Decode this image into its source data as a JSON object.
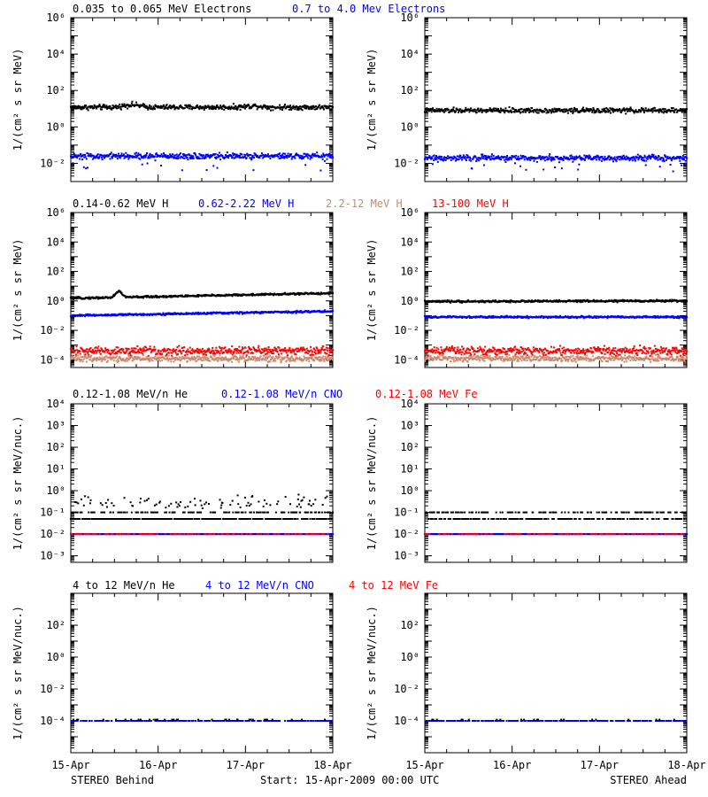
{
  "colors": {
    "black": "#000000",
    "blue": "#0000ff",
    "brown": "#c98a6e",
    "red": "#ff0000"
  },
  "titles": [
    [
      {
        "text": "0.035 to 0.065 MeV Electrons",
        "color": "black"
      },
      {
        "text": "0.7 to 4.0 Mev Electrons",
        "color": "blue"
      }
    ],
    [
      {
        "text": "0.14-0.62 MeV H",
        "color": "black"
      },
      {
        "text": "0.62-2.22 MeV H",
        "color": "blue"
      },
      {
        "text": "2.2-12 MeV H",
        "color": "brown"
      },
      {
        "text": "13-100 MeV H",
        "color": "red"
      }
    ],
    [
      {
        "text": "0.12-1.08 MeV/n He",
        "color": "black"
      },
      {
        "text": "0.12-1.08 MeV/n CNO",
        "color": "blue"
      },
      {
        "text": "0.12-1.08 MeV Fe",
        "color": "red"
      }
    ],
    [
      {
        "text": "4 to 12 MeV/n He",
        "color": "black"
      },
      {
        "text": "4 to 12 MeV/n CNO",
        "color": "blue"
      },
      {
        "text": "4 to 12 MeV Fe",
        "color": "red"
      }
    ]
  ],
  "footer": {
    "left": "STEREO Behind",
    "center": "Start: 15-Apr-2009 00:00 UTC",
    "right": "STEREO Ahead"
  },
  "chart_data": [
    {
      "type": "scatter",
      "panel": "row1-behind",
      "ylabel": "1/(cm² s sr MeV)",
      "yscale": "log",
      "ylim": [
        0.001,
        1000000
      ],
      "ytick_exponents": [
        -2,
        0,
        2,
        4,
        6
      ],
      "x": [
        "15-Apr",
        "16-Apr",
        "17-Apr",
        "18-Apr"
      ],
      "xlim": [
        0,
        3
      ],
      "series": [
        {
          "color": "black",
          "level": 12,
          "spread": 0.1,
          "bumps": [
            [
              0.7,
              0.15
            ],
            [
              2.1,
              0.08
            ]
          ]
        },
        {
          "color": "blue",
          "level": 0.025,
          "spread": 0.12,
          "outliers": 0.1
        }
      ]
    },
    {
      "type": "scatter",
      "panel": "row1-ahead",
      "ylabel": "1/(cm² s sr MeV)",
      "yscale": "log",
      "ylim": [
        0.001,
        1000000
      ],
      "ytick_exponents": [
        -2,
        0,
        2,
        4,
        6
      ],
      "x": [
        "15-Apr",
        "16-Apr",
        "17-Apr",
        "18-Apr"
      ],
      "xlim": [
        0,
        3
      ],
      "series": [
        {
          "color": "black",
          "level": 8,
          "spread": 0.1
        },
        {
          "color": "blue",
          "level": 0.02,
          "spread": 0.12,
          "outliers": 0.1
        }
      ]
    },
    {
      "type": "scatter",
      "panel": "row2-behind",
      "ylabel": "1/(cm² s sr MeV)",
      "yscale": "log",
      "ylim": [
        3e-05,
        1000000
      ],
      "ytick_exponents": [
        -4,
        -2,
        0,
        2,
        4,
        6
      ],
      "x": [
        "15-Apr",
        "16-Apr",
        "17-Apr",
        "18-Apr"
      ],
      "xlim": [
        0,
        3
      ],
      "series": [
        {
          "color": "black",
          "level": 1.5,
          "spread": 0.05,
          "trend": 0.35,
          "peak": [
            0.55,
            0.45
          ]
        },
        {
          "color": "blue",
          "level": 0.1,
          "spread": 0.05,
          "trend": 0.3
        },
        {
          "color": "brown",
          "level": 0.00012,
          "spread": 0.15
        },
        {
          "color": "red",
          "level": 0.0004,
          "spread": 0.2
        }
      ]
    },
    {
      "type": "scatter",
      "panel": "row2-ahead",
      "ylabel": "1/(cm² s sr MeV)",
      "yscale": "log",
      "ylim": [
        3e-05,
        1000000
      ],
      "ytick_exponents": [
        -4,
        -2,
        0,
        2,
        4,
        6
      ],
      "x": [
        "15-Apr",
        "16-Apr",
        "17-Apr",
        "18-Apr"
      ],
      "xlim": [
        0,
        3
      ],
      "series": [
        {
          "color": "black",
          "level": 0.9,
          "spread": 0.05,
          "trend": 0.05
        },
        {
          "color": "blue",
          "level": 0.08,
          "spread": 0.05
        },
        {
          "color": "brown",
          "level": 0.00012,
          "spread": 0.15
        },
        {
          "color": "red",
          "level": 0.0004,
          "spread": 0.2
        }
      ]
    },
    {
      "type": "scatter",
      "panel": "row3-behind",
      "ylabel": "1/(cm² s sr MeV/nuc.)",
      "yscale": "log",
      "ylim": [
        0.0005,
        10000
      ],
      "ytick_exponents": [
        -3,
        -2,
        -1,
        0,
        1,
        2,
        3,
        4
      ],
      "x": [
        "15-Apr",
        "16-Apr",
        "17-Apr",
        "18-Apr"
      ],
      "xlim": [
        0,
        3
      ],
      "series": [
        {
          "color": "black",
          "level": 0.05,
          "quantized": [
            0.05,
            0.1,
            0.15,
            0.2,
            0.3
          ],
          "density": 1.0
        },
        {
          "color": "blue",
          "level": 0.01,
          "density": 1.0
        },
        {
          "color": "red",
          "level": 0.01,
          "density": 0.3
        }
      ]
    },
    {
      "type": "scatter",
      "panel": "row3-ahead",
      "ylabel": "1/(cm² s sr MeV/nuc.)",
      "yscale": "log",
      "ylim": [
        0.0005,
        10000
      ],
      "ytick_exponents": [
        -3,
        -2,
        -1,
        0,
        1,
        2,
        3,
        4
      ],
      "x": [
        "15-Apr",
        "16-Apr",
        "17-Apr",
        "18-Apr"
      ],
      "xlim": [
        0,
        3
      ],
      "series": [
        {
          "color": "black",
          "level": 0.05,
          "quantized": [
            0.05,
            0.1
          ],
          "density": 0.6
        },
        {
          "color": "blue",
          "level": 0.01,
          "density": 1.0
        },
        {
          "color": "red",
          "level": 0.01,
          "density": 0.3
        }
      ]
    },
    {
      "type": "scatter",
      "panel": "row4-behind",
      "ylabel": "1/(cm² s sr MeV/nuc.)",
      "yscale": "log",
      "ylim": [
        1e-06,
        10000
      ],
      "ytick_exponents": [
        -4,
        -2,
        0,
        2
      ],
      "x": [
        "15-Apr",
        "16-Apr",
        "17-Apr",
        "18-Apr"
      ],
      "xlim": [
        0,
        3
      ],
      "series": [
        {
          "color": "blue",
          "level": 0.0001,
          "density": 0.5
        },
        {
          "color": "black",
          "level": 0.00012,
          "density": 0.06
        }
      ]
    },
    {
      "type": "scatter",
      "panel": "row4-ahead",
      "ylabel": "1/(cm² s sr MeV/nuc.)",
      "yscale": "log",
      "ylim": [
        1e-06,
        10000
      ],
      "ytick_exponents": [
        -4,
        -2,
        0,
        2
      ],
      "x": [
        "15-Apr",
        "16-Apr",
        "17-Apr",
        "18-Apr"
      ],
      "xlim": [
        0,
        3
      ],
      "series": [
        {
          "color": "blue",
          "level": 0.0001,
          "density": 0.5
        },
        {
          "color": "black",
          "level": 0.00012,
          "density": 0.04
        }
      ]
    }
  ]
}
